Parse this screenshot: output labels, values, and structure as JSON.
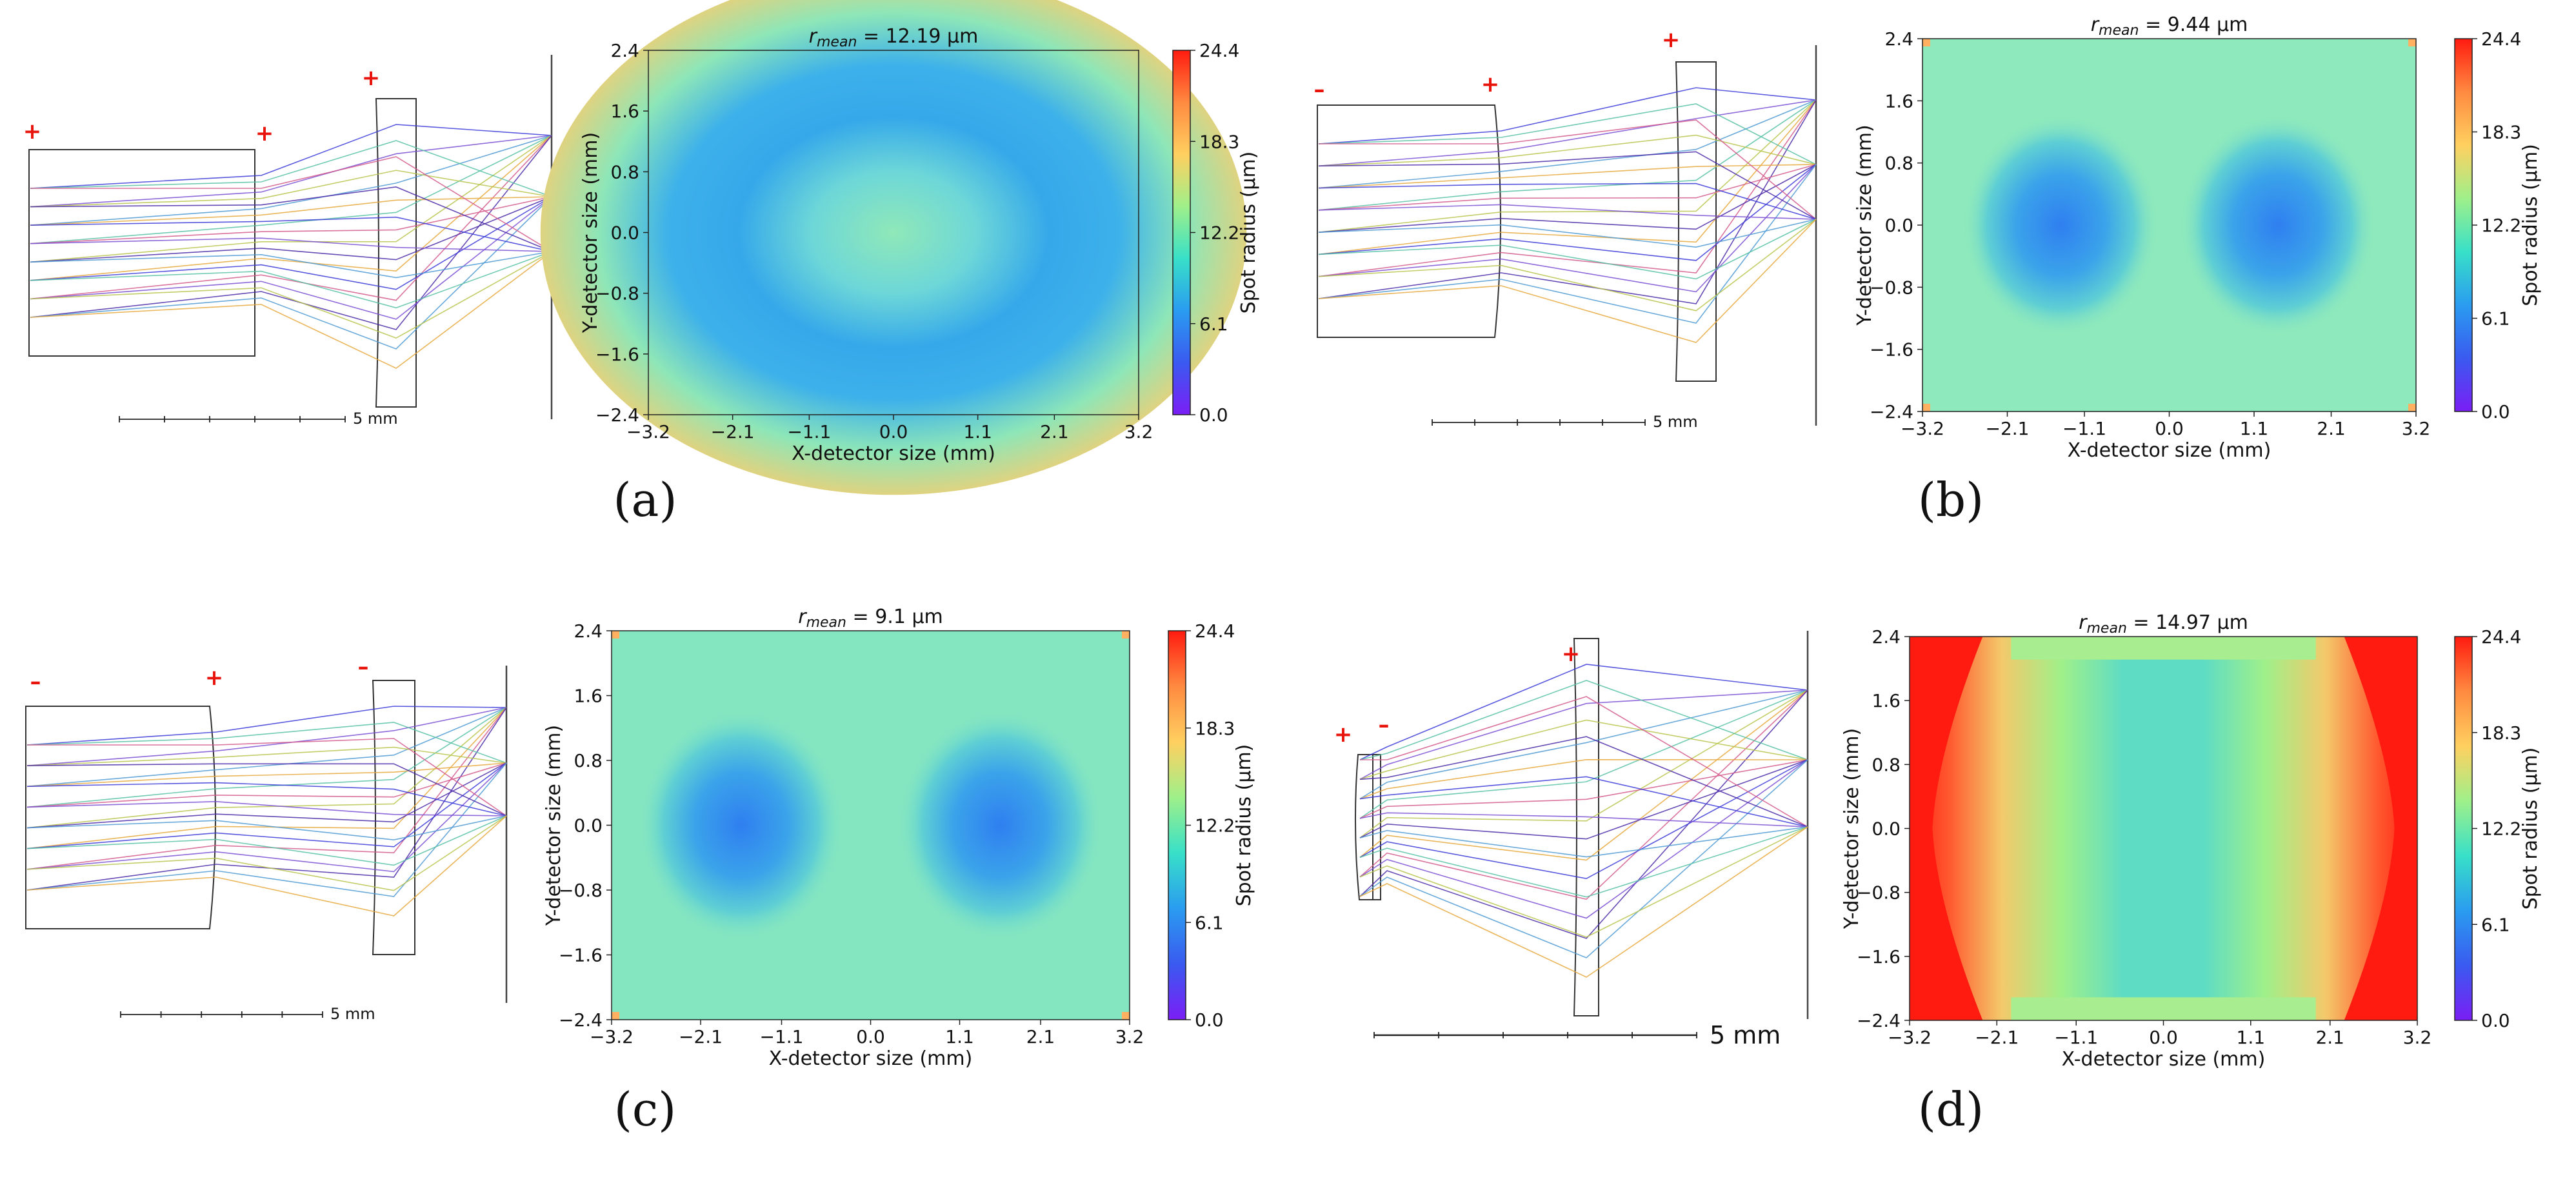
{
  "figure": {
    "panels": [
      {
        "label": "(a)",
        "signs": [
          "+",
          "+",
          "+"
        ],
        "scale_label": "5 mm",
        "rmean_prefix": "r",
        "rmean_sub": "mean",
        "rmean_value": " = 12.19 µm",
        "map_pattern": "ring",
        "tint": "#8fe8b4",
        "corner_color": "#ffa95a"
      },
      {
        "label": "(b)",
        "signs": [
          "-",
          "+",
          "+"
        ],
        "scale_label": "5 mm",
        "rmean_prefix": "r",
        "rmean_sub": "mean",
        "rmean_value": " = 9.44 µm",
        "map_pattern": "double-blob",
        "tint": "#8ee9bc",
        "corner_color": "#ffb060"
      },
      {
        "label": "(c)",
        "signs": [
          "-",
          "+",
          "-"
        ],
        "scale_label": "5 mm",
        "rmean_prefix": "r",
        "rmean_sub": "mean",
        "rmean_value": " = 9.1 µm",
        "map_pattern": "double-blob",
        "tint": "#84e6c0",
        "corner_color": "#ffb060"
      },
      {
        "label": "(d)",
        "signs": [
          "+",
          "-",
          "+"
        ],
        "scale_label": "5 mm",
        "rmean_prefix": "r",
        "rmean_sub": "mean",
        "rmean_value": " = 14.97 µm",
        "map_pattern": "red-edges",
        "tint": "#b4f090",
        "corner_color": "#ff1b10"
      }
    ],
    "axes": {
      "xlabel": "X-detector size (mm)",
      "ylabel": "Y-detector size (mm)",
      "x_ticks": [
        "−3.2",
        "−2.1",
        "−1.1",
        "0.0",
        "1.1",
        "2.1",
        "3.2"
      ],
      "y_ticks": [
        "2.4",
        "1.6",
        "0.8",
        "0.0",
        "−0.8",
        "−1.6",
        "−2.4"
      ],
      "colorbar_label": "Spot radius (µm)",
      "colorbar_ticks": [
        "24.4",
        "18.3",
        "12.2",
        "6.1",
        "0.0"
      ]
    },
    "colors": {
      "sign": "#e8140c",
      "lens_outline": "#333333",
      "ray_palette": [
        "#3b3bd9",
        "#7a4fd4",
        "#4f9ad4",
        "#56c1a3",
        "#b8c44c",
        "#e6a83c",
        "#d45a8c",
        "#4b2aa8"
      ],
      "colorbar_stops": [
        "#ff1b10",
        "#ff8a40",
        "#ffd060",
        "#9ff08a",
        "#38e0c8",
        "#2a9cf0",
        "#3a5af0",
        "#7b1ef5"
      ]
    }
  },
  "chart_data": [
    {
      "type": "heatmap",
      "panel": "(a)",
      "title": "r_mean = 12.19 µm",
      "xlabel": "X-detector size (mm)",
      "ylabel": "Y-detector size (mm)",
      "xlim": [
        -3.2,
        3.2
      ],
      "ylim": [
        -2.4,
        2.4
      ],
      "x_ticks": [
        -3.2,
        -2.1,
        -1.1,
        0.0,
        1.1,
        2.1,
        3.2
      ],
      "y_ticks": [
        2.4,
        1.6,
        0.8,
        0.0,
        -0.8,
        -1.6,
        -2.4
      ],
      "colorbar_label": "Spot radius (µm)",
      "colorbar_range": [
        0.0,
        24.4
      ],
      "colorbar_ticks": [
        24.4,
        18.3,
        12.2,
        6.1,
        0.0
      ],
      "r_mean_um": 12.19
    },
    {
      "type": "heatmap",
      "panel": "(b)",
      "title": "r_mean = 9.44 µm",
      "xlabel": "X-detector size (mm)",
      "ylabel": "Y-detector size (mm)",
      "xlim": [
        -3.2,
        3.2
      ],
      "ylim": [
        -2.4,
        2.4
      ],
      "x_ticks": [
        -3.2,
        -2.1,
        -1.1,
        0.0,
        1.1,
        2.1,
        3.2
      ],
      "y_ticks": [
        2.4,
        1.6,
        0.8,
        0.0,
        -0.8,
        -1.6,
        -2.4
      ],
      "colorbar_label": "Spot radius (µm)",
      "colorbar_range": [
        0.0,
        24.4
      ],
      "colorbar_ticks": [
        24.4,
        18.3,
        12.2,
        6.1,
        0.0
      ],
      "r_mean_um": 9.44
    },
    {
      "type": "heatmap",
      "panel": "(c)",
      "title": "r_mean = 9.1 µm",
      "xlabel": "X-detector size (mm)",
      "ylabel": "Y-detector size (mm)",
      "xlim": [
        -3.2,
        3.2
      ],
      "ylim": [
        -2.4,
        2.4
      ],
      "x_ticks": [
        -3.2,
        -2.1,
        -1.1,
        0.0,
        1.1,
        2.1,
        3.2
      ],
      "y_ticks": [
        2.4,
        1.6,
        0.8,
        0.0,
        -0.8,
        -1.6,
        -2.4
      ],
      "colorbar_label": "Spot radius (µm)",
      "colorbar_range": [
        0.0,
        24.4
      ],
      "colorbar_ticks": [
        24.4,
        18.3,
        12.2,
        6.1,
        0.0
      ],
      "r_mean_um": 9.1
    },
    {
      "type": "heatmap",
      "panel": "(d)",
      "title": "r_mean = 14.97 µm",
      "xlabel": "X-detector size (mm)",
      "ylabel": "Y-detector size (mm)",
      "xlim": [
        -3.2,
        3.2
      ],
      "ylim": [
        -2.4,
        2.4
      ],
      "x_ticks": [
        -3.2,
        -2.1,
        -1.1,
        0.0,
        1.1,
        2.1,
        3.2
      ],
      "y_ticks": [
        2.4,
        1.6,
        0.8,
        0.0,
        -0.8,
        -1.6,
        -2.4
      ],
      "colorbar_label": "Spot radius (µm)",
      "colorbar_range": [
        0.0,
        24.4
      ],
      "colorbar_ticks": [
        24.4,
        18.3,
        12.2,
        6.1,
        0.0
      ],
      "r_mean_um": 14.97
    }
  ]
}
